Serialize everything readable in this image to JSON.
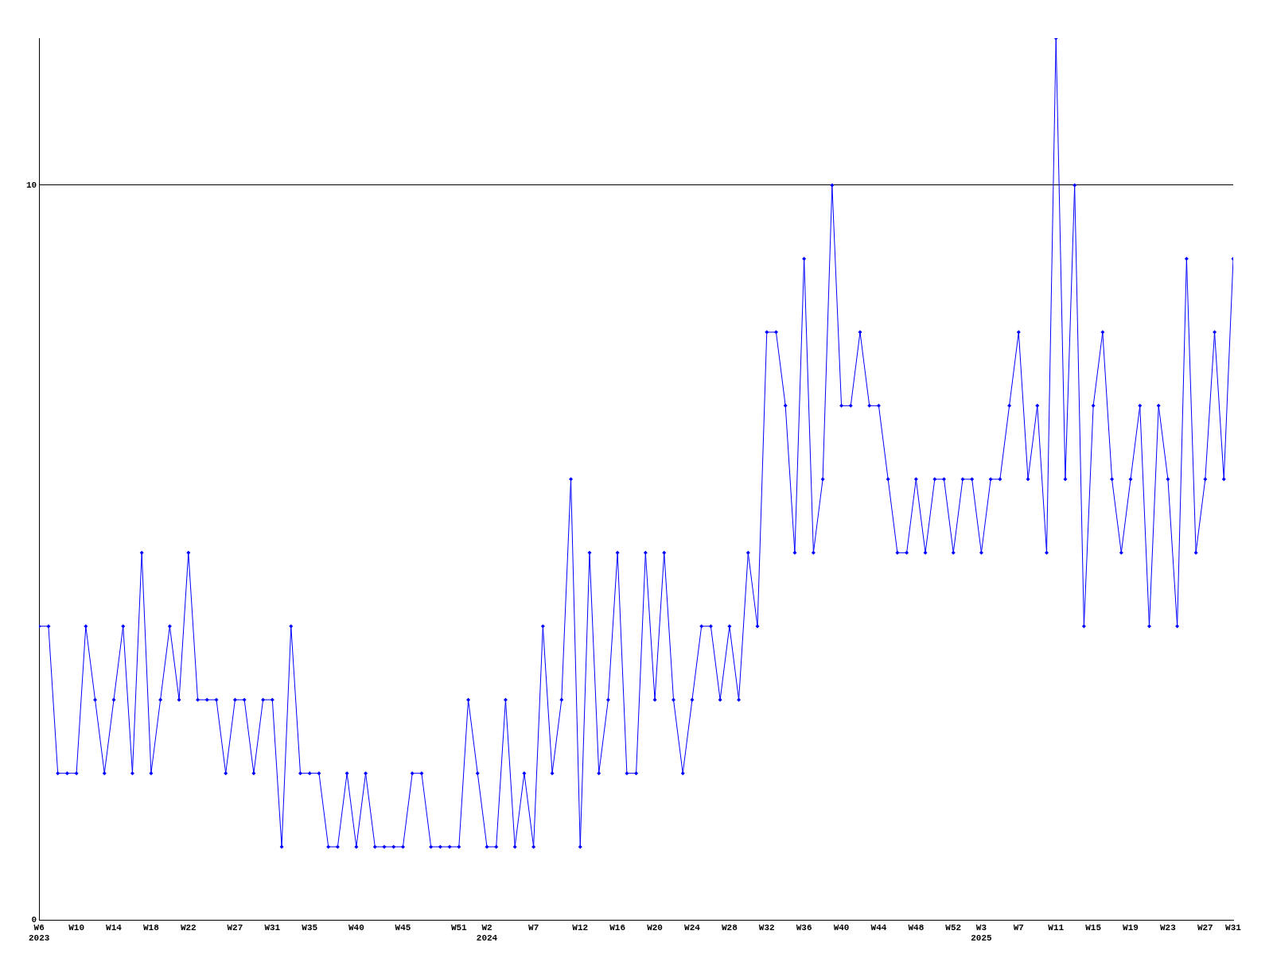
{
  "chart_data": {
    "type": "line",
    "x": [
      "2023-02-06",
      "2023-02-13",
      "2023-02-20",
      "2023-02-27",
      "2023-03-06",
      "2023-03-13",
      "2023-03-20",
      "2023-03-27",
      "2023-04-03",
      "2023-04-10",
      "2023-04-17",
      "2023-04-24",
      "2023-05-01",
      "2023-05-08",
      "2023-05-15",
      "2023-05-22",
      "2023-05-29",
      "2023-06-05",
      "2023-06-12",
      "2023-06-19",
      "2023-06-26",
      "2023-07-03",
      "2023-07-10",
      "2023-07-17",
      "2023-07-24",
      "2023-07-31",
      "2023-08-07",
      "2023-08-14",
      "2023-08-21",
      "2023-08-28",
      "2023-09-04",
      "2023-09-11",
      "2023-09-18",
      "2023-09-25",
      "2023-10-02",
      "2023-10-09",
      "2023-10-16",
      "2023-10-23",
      "2023-10-30",
      "2023-11-06",
      "2023-11-13",
      "2023-11-20",
      "2023-11-27",
      "2023-12-04",
      "2023-12-11",
      "2023-12-18",
      "2023-12-25",
      "2024-01-01",
      "2024-01-08",
      "2024-01-15",
      "2024-01-22",
      "2024-01-29",
      "2024-02-05",
      "2024-02-12",
      "2024-02-19",
      "2024-02-26",
      "2024-03-04",
      "2024-03-11",
      "2024-03-18",
      "2024-03-25",
      "2024-04-01",
      "2024-04-08",
      "2024-04-15",
      "2024-04-22",
      "2024-04-29",
      "2024-05-06",
      "2024-05-13",
      "2024-05-20",
      "2024-05-27",
      "2024-06-03",
      "2024-06-10",
      "2024-06-17",
      "2024-06-24",
      "2024-07-01",
      "2024-07-08",
      "2024-07-15",
      "2024-07-22",
      "2024-07-29",
      "2024-08-05",
      "2024-08-12",
      "2024-08-19",
      "2024-08-26",
      "2024-09-02",
      "2024-09-09",
      "2024-09-16",
      "2024-09-23",
      "2024-09-30",
      "2024-10-07",
      "2024-10-14",
      "2024-10-21",
      "2024-10-28",
      "2024-11-04",
      "2024-11-11",
      "2024-11-18",
      "2024-11-25",
      "2024-12-02",
      "2024-12-09",
      "2024-12-16",
      "2024-12-23",
      "2024-12-30",
      "2025-01-06",
      "2025-01-13",
      "2025-01-20",
      "2025-01-27",
      "2025-02-03",
      "2025-02-10",
      "2025-02-17",
      "2025-02-24",
      "2025-03-03",
      "2025-03-10",
      "2025-03-17",
      "2025-03-24",
      "2025-03-31",
      "2025-04-07",
      "2025-04-14",
      "2025-04-21",
      "2025-04-28",
      "2025-05-05",
      "2025-05-12",
      "2025-05-19",
      "2025-05-26",
      "2025-06-02",
      "2025-06-09",
      "2025-06-16",
      "2025-06-23",
      "2025-06-30",
      "2025-07-07",
      "2025-07-14",
      "2025-07-21"
    ],
    "series": [
      {
        "color": "#0000ff",
        "values": [
          4,
          4,
          2,
          2,
          2,
          4,
          3,
          2,
          3,
          4,
          2,
          5,
          2,
          3,
          4,
          3,
          5,
          3,
          3,
          3,
          2,
          3,
          3,
          2,
          3,
          3,
          1,
          4,
          2,
          2,
          2,
          1,
          1,
          2,
          1,
          2,
          1,
          1,
          1,
          1,
          2,
          2,
          1,
          1,
          1,
          1,
          3,
          2,
          1,
          1,
          3,
          1,
          2,
          1,
          4,
          2,
          3,
          6,
          1,
          5,
          2,
          3,
          5,
          2,
          2,
          5,
          3,
          5,
          3,
          2,
          3,
          4,
          4,
          3,
          4,
          3,
          5,
          4,
          8,
          8,
          7,
          5,
          9,
          5,
          6,
          10,
          7,
          7,
          8,
          7,
          7,
          6,
          5,
          5,
          6,
          5,
          6,
          6,
          5,
          6,
          6,
          5,
          6,
          6,
          7,
          8,
          6,
          7,
          5,
          12,
          6,
          10,
          4,
          7,
          8,
          6,
          5,
          6,
          7,
          4,
          7,
          6,
          4,
          9,
          5,
          6,
          8,
          6,
          9
        ]
      }
    ],
    "xlim": [
      "2023-02-06",
      "2025-07-21"
    ],
    "xticks": [
      {
        "value": "2023-02-06",
        "label": "W6\n2023"
      },
      {
        "value": "2023-03-06",
        "label": "W10"
      },
      {
        "value": "2023-04-03",
        "label": "W14"
      },
      {
        "value": "2023-05-01",
        "label": "W18"
      },
      {
        "value": "2023-05-29",
        "label": "W22"
      },
      {
        "value": "2023-07-03",
        "label": "W27"
      },
      {
        "value": "2023-07-31",
        "label": "W31"
      },
      {
        "value": "2023-08-28",
        "label": "W35"
      },
      {
        "value": "2023-10-02",
        "label": "W40"
      },
      {
        "value": "2023-11-06",
        "label": "W45"
      },
      {
        "value": "2023-12-18",
        "label": "W51"
      },
      {
        "value": "2024-01-08",
        "label": "W2\n2024"
      },
      {
        "value": "2024-02-12",
        "label": "W7"
      },
      {
        "value": "2024-03-18",
        "label": "W12"
      },
      {
        "value": "2024-04-15",
        "label": "W16"
      },
      {
        "value": "2024-05-13",
        "label": "W20"
      },
      {
        "value": "2024-06-10",
        "label": "W24"
      },
      {
        "value": "2024-07-08",
        "label": "W28"
      },
      {
        "value": "2024-08-05",
        "label": "W32"
      },
      {
        "value": "2024-09-02",
        "label": "W36"
      },
      {
        "value": "2024-09-30",
        "label": "W40"
      },
      {
        "value": "2024-10-28",
        "label": "W44"
      },
      {
        "value": "2024-11-25",
        "label": "W48"
      },
      {
        "value": "2024-12-23",
        "label": "W52"
      },
      {
        "value": "2025-01-13",
        "label": "W3\n2025"
      },
      {
        "value": "2025-02-10",
        "label": "W7"
      },
      {
        "value": "2025-03-10",
        "label": "W11"
      },
      {
        "value": "2025-04-07",
        "label": "W15"
      },
      {
        "value": "2025-05-05",
        "label": "W19"
      },
      {
        "value": "2025-06-02",
        "label": "W23"
      },
      {
        "value": "2025-06-30",
        "label": "W27"
      },
      {
        "value": "2025-07-21",
        "label": "W31"
      }
    ],
    "ylim": [
      0,
      12
    ],
    "yticks": [
      0,
      10
    ],
    "grid": "y",
    "marker": "diamond",
    "line_style": "solid"
  }
}
